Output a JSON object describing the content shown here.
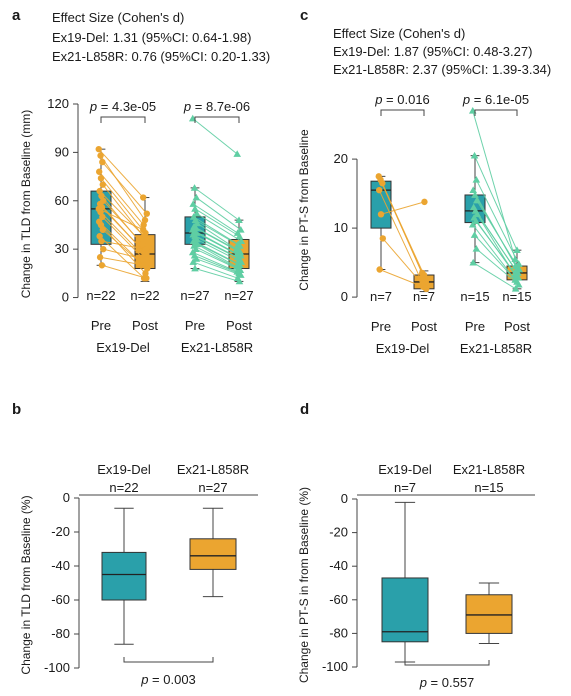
{
  "colors": {
    "teal": "#2aa0aa",
    "orange": "#eba530",
    "green": "#5fcea3",
    "axis": "#444444"
  },
  "chart_data": [
    {
      "panel": "a",
      "type": "box+paired",
      "effect_title": "Effect Size (Cohen's d)",
      "effect_lines": [
        "Ex19-Del: 1.31 (95%CI: 0.64-1.98)",
        "Ex21-L858R: 0.76 (95%CI: 0.20-1.33)"
      ],
      "ylabel": "Change in TLD from Baseline (mm)",
      "ylim": [
        -4,
        120
      ],
      "yticks": [
        0,
        30,
        60,
        90,
        120
      ],
      "groups": [
        {
          "name": "Ex19-Del",
          "marker": "circle",
          "pvalue": "4.3e-05",
          "pre": {
            "label": "Pre",
            "n": "n=22",
            "q1": 33,
            "median": 55,
            "q3": 66,
            "min": 20,
            "max": 92
          },
          "post": {
            "label": "Post",
            "n": "n=22",
            "q1": 18,
            "median": 27,
            "q3": 39,
            "min": 10,
            "max": 62
          },
          "pairs": [
            [
              92,
              62
            ],
            [
              88,
              48
            ],
            [
              84,
              52
            ],
            [
              78,
              45
            ],
            [
              74,
              40
            ],
            [
              70,
              35
            ],
            [
              66,
              38
            ],
            [
              63,
              30
            ],
            [
              60,
              33
            ],
            [
              58,
              28
            ],
            [
              56,
              27
            ],
            [
              55,
              42
            ],
            [
              53,
              25
            ],
            [
              50,
              22
            ],
            [
              47,
              20
            ],
            [
              45,
              15
            ],
            [
              42,
              18
            ],
            [
              38,
              12
            ],
            [
              35,
              30
            ],
            [
              30,
              24
            ],
            [
              25,
              20
            ],
            [
              20,
              12
            ]
          ]
        },
        {
          "name": "Ex21-L858R",
          "marker": "triangle",
          "pvalue": "8.7e-06",
          "pre": {
            "label": "Pre",
            "n": "n=27",
            "q1": 33,
            "median": 40,
            "q3": 50,
            "min": 18,
            "max": 68
          },
          "post": {
            "label": "Post",
            "n": "n=27",
            "q1": 18,
            "median": 27,
            "q3": 36,
            "min": 10,
            "max": 48
          },
          "pairs": [
            [
              111,
              89
            ],
            [
              68,
              48
            ],
            [
              62,
              42
            ],
            [
              58,
              40
            ],
            [
              55,
              38
            ],
            [
              52,
              35
            ],
            [
              50,
              33
            ],
            [
              48,
              32
            ],
            [
              46,
              30
            ],
            [
              44,
              29
            ],
            [
              43,
              28
            ],
            [
              42,
              27
            ],
            [
              41,
              26
            ],
            [
              40,
              26
            ],
            [
              39,
              25
            ],
            [
              38,
              24
            ],
            [
              36,
              22
            ],
            [
              35,
              21
            ],
            [
              34,
              20
            ],
            [
              33,
              19
            ],
            [
              32,
              18
            ],
            [
              30,
              17
            ],
            [
              28,
              16
            ],
            [
              26,
              15
            ],
            [
              24,
              14
            ],
            [
              22,
              12
            ],
            [
              18,
              10
            ]
          ]
        }
      ]
    },
    {
      "panel": "b",
      "type": "box",
      "ylabel": "Change in TLD from Baseline (%)",
      "ylim": [
        -100,
        0
      ],
      "yticks": [
        0,
        -20,
        -40,
        -60,
        -80,
        -100
      ],
      "pvalue": "0.003",
      "groups": [
        {
          "name": "Ex19-Del",
          "n": "n=22",
          "q1": -60,
          "median": -45,
          "q3": -32,
          "min": -86,
          "max": -6
        },
        {
          "name": "Ex21-L858R",
          "n": "n=27",
          "q1": -42,
          "median": -34,
          "q3": -24,
          "min": -58,
          "max": -6
        }
      ]
    },
    {
      "panel": "c",
      "type": "box+paired",
      "effect_title": "Effect Size (Cohen's d)",
      "effect_lines": [
        "Ex19-Del: 1.87 (95%CI: 0.48-3.27)",
        "Ex21-L858R: 2.37 (95%CI: 1.39-3.34)"
      ],
      "ylabel": "Change in PT-S from Baseline",
      "ylim": [
        -1,
        29
      ],
      "yticks": [
        0,
        10,
        20
      ],
      "groups": [
        {
          "name": "Ex19-Del",
          "marker": "circle",
          "pvalue": "0.016",
          "pre": {
            "label": "Pre",
            "n": "n=7",
            "q1": 10,
            "median": 15.5,
            "q3": 16.8,
            "min": 4,
            "max": 17.5
          },
          "post": {
            "label": "Post",
            "n": "n=7",
            "q1": 1.2,
            "median": 2.2,
            "q3": 3.2,
            "min": 0.8,
            "max": 3.8
          },
          "pairs": [
            [
              17.5,
              3.5
            ],
            [
              17,
              3.2
            ],
            [
              16.5,
              2.2
            ],
            [
              15.5,
              2
            ],
            [
              12,
              13.8
            ],
            [
              8.5,
              1.2
            ],
            [
              4,
              1.5
            ]
          ]
        },
        {
          "name": "Ex21-L858R",
          "marker": "triangle",
          "pvalue": "6.1e-05",
          "pre": {
            "label": "Pre",
            "n": "n=15",
            "q1": 10.8,
            "median": 12.5,
            "q3": 14.8,
            "min": 5,
            "max": 20.5
          },
          "post": {
            "label": "Post",
            "n": "n=15",
            "q1": 2.5,
            "median": 3.5,
            "q3": 4.5,
            "min": 1.2,
            "max": 6.8
          },
          "pairs": [
            [
              27,
              5.5
            ],
            [
              20.5,
              6.8
            ],
            [
              17,
              4.8
            ],
            [
              15.5,
              4.5
            ],
            [
              14.8,
              4.2
            ],
            [
              14,
              4
            ],
            [
              13,
              3.8
            ],
            [
              12.5,
              3.5
            ],
            [
              12,
              3.2
            ],
            [
              11.5,
              3
            ],
            [
              11,
              2.8
            ],
            [
              10.5,
              2.5
            ],
            [
              9,
              2.2
            ],
            [
              7,
              1.8
            ],
            [
              5,
              1.2
            ]
          ]
        }
      ]
    },
    {
      "panel": "d",
      "type": "box",
      "ylabel": "Change in PT-S in from Baseline (%)",
      "ylim": [
        -100,
        0
      ],
      "yticks": [
        0,
        -20,
        -40,
        -60,
        -80,
        -100
      ],
      "pvalue": "0.557",
      "groups": [
        {
          "name": "Ex19-Del",
          "n": "n=7",
          "q1": -85,
          "median": -79,
          "q3": -47,
          "min": -97,
          "max": -2
        },
        {
          "name": "Ex21-L858R",
          "n": "n=15",
          "q1": -80,
          "median": -69,
          "q3": -57,
          "min": -86,
          "max": -50
        }
      ]
    }
  ]
}
